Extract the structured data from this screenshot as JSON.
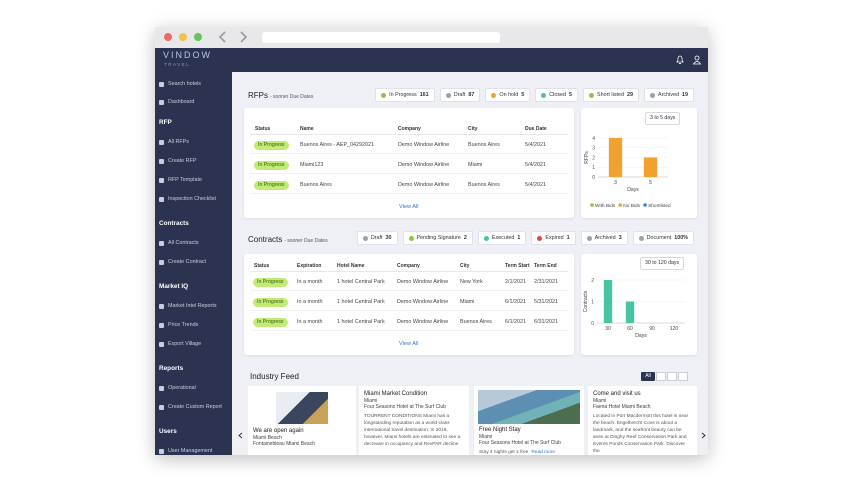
{
  "header": {
    "logo": "VINDOW",
    "logo_sub": "TRAVEL"
  },
  "sidebar": {
    "top": [
      "Search hotels",
      "Dashboard"
    ],
    "sections": [
      {
        "title": "RFP",
        "items": [
          "All RFPs",
          "Create RFP",
          "RFP Template",
          "Inspection Checklist"
        ]
      },
      {
        "title": "Contracts",
        "items": [
          "All Contracts",
          "Create Contract"
        ]
      },
      {
        "title": "Market IQ",
        "items": [
          "Market Intel Reports",
          "Price Trends",
          "Export Village"
        ]
      },
      {
        "title": "Reports",
        "items": [
          "Operational",
          "Create Custom Report"
        ]
      },
      {
        "title": "Users",
        "items": [
          "User Management"
        ]
      }
    ]
  },
  "rfps": {
    "title": "RFPs",
    "subtitle": "- sooner Due Dates",
    "badges": [
      {
        "label": "In Progress",
        "count": 161
      },
      {
        "label": "Draft",
        "count": 87
      },
      {
        "label": "On hold",
        "count": 5
      },
      {
        "label": "Closed",
        "count": 5
      },
      {
        "label": "Short listed",
        "count": 29
      },
      {
        "label": "Archived",
        "count": 19
      }
    ],
    "table": {
      "columns": [
        "Status",
        "Name",
        "Company",
        "City",
        "Due Date"
      ],
      "rows": [
        [
          "In Progress",
          "Buenos Aires - AEP_04292021",
          "Demo Window Airline",
          "Buenos Aires",
          "5/4/2021"
        ],
        [
          "In Progress",
          "Miami123",
          "Demo Window Airline",
          "Miami",
          "5/4/2021"
        ],
        [
          "In Progress",
          "Buenos Aires",
          "Demo Window Airline",
          "Buenos Aires",
          "5/4/2021"
        ]
      ]
    },
    "view_all": "View All"
  },
  "contracts": {
    "title": "Contracts",
    "subtitle": "- sooner Due Dates",
    "badges": [
      {
        "label": "Draft",
        "count": 30
      },
      {
        "label": "Pending Signature",
        "count": 2
      },
      {
        "label": "Executed",
        "count": 1
      },
      {
        "label": "Expired",
        "count": 1
      },
      {
        "label": "Archived",
        "count": 3
      },
      {
        "label": "Document",
        "count": "100%"
      }
    ],
    "table": {
      "columns": [
        "Status",
        "Expiration",
        "Hotel Name",
        "Company",
        "City",
        "Term Start",
        "Term End"
      ],
      "rows": [
        [
          "In Progress",
          "In a month",
          "1 hotel Central Park",
          "Demo Window Airline",
          "New York",
          "2/1/2021",
          "2/31/2021"
        ],
        [
          "In Progress",
          "In a month",
          "1 hotel Central Park",
          "Demo Window Airline",
          "Miami",
          "6/1/2021",
          "5/31/2021"
        ],
        [
          "In Progress",
          "In a month",
          "1 hotel Central Park",
          "Demo Window Airline",
          "Buenos Aires",
          "6/1/2021",
          "6/31/2021"
        ]
      ]
    },
    "view_all": "View All"
  },
  "chart_data": [
    {
      "type": "bar",
      "filter": "3 to 5 days",
      "y_label": "RFPs",
      "x_label": "Days",
      "categories": [
        "3",
        "5"
      ],
      "ylim": [
        0,
        4
      ],
      "yticks": [
        0,
        1,
        2,
        3,
        4
      ],
      "grid": true,
      "series": [
        {
          "name": "With Bids",
          "color": "#8cc63f",
          "values": [
            0,
            0
          ]
        },
        {
          "name": "No Bids",
          "color": "#f0a12e",
          "values": [
            4,
            2
          ]
        },
        {
          "name": "Shortlisted",
          "color": "#3d7fd6",
          "values": [
            0,
            0
          ]
        }
      ]
    },
    {
      "type": "bar",
      "filter": "30 to 120 days",
      "y_label": "Contracts",
      "x_label": "Days",
      "categories": [
        "30",
        "60",
        "90",
        "120"
      ],
      "ylim": [
        0,
        2
      ],
      "yticks": [
        0,
        1,
        2
      ],
      "grid": true,
      "color": "#46c4a4",
      "values": [
        2,
        1,
        0,
        0
      ]
    }
  ],
  "feed": {
    "title": "Industry Feed",
    "filter": "All",
    "cards": [
      {
        "title": "We are open again",
        "city": "Miami Beach",
        "hotel": "Fontainebleau Miami Beach"
      },
      {
        "title": "Miami Market Condition",
        "city": "Miami",
        "hotel": "Four Seasons Hotel at The Surf Club",
        "text": "TOURRENT CONDITIONS Miami has a longstanding reputation as a world-class international travel destination. In 2019, however, Miami hotels are estimated to see a decrease in occupancy and RevPAR decline"
      },
      {
        "title": "Free Night Stay",
        "city": "Miami",
        "hotel": "Four Seasons Hotel at The Surf Club",
        "text": "Stay 4 nights get 1 free",
        "more": "Read more"
      },
      {
        "title": "Come and visit us",
        "city": "Miami",
        "hotel": "Faena Hotel Miami Beach",
        "text": "Located in Port Macdermott this hotel is near the beach. Engelbrecht Cove is about a landmark, and the seafront beauty can be seen at Dinghy Reef Conservation Park and Everes Ponds Conservation Park. Discover the"
      }
    ]
  }
}
